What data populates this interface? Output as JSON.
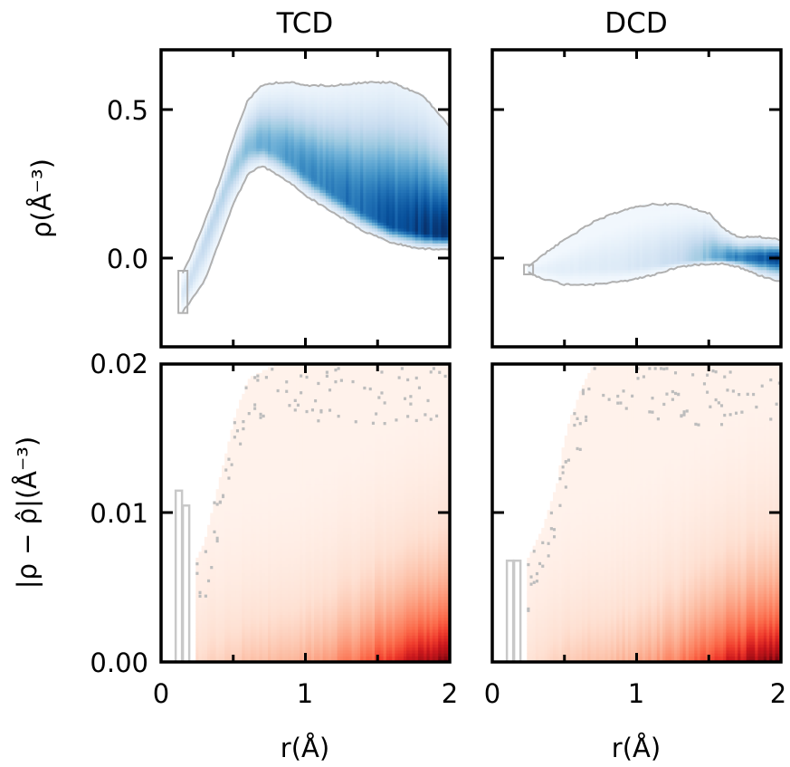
{
  "chart_data": [
    {
      "type": "heatmap",
      "panel": "top-left",
      "title": "TCD",
      "xlabel": "r(Å)",
      "ylabel": "ρ(Å⁻³)",
      "xlim": [
        0,
        2
      ],
      "ylim": [
        -0.3,
        0.7
      ],
      "xticks": [
        0,
        1,
        2
      ],
      "yticks": [
        0.0,
        0.5
      ],
      "ytick_labels": [
        "0.0",
        "0.5"
      ],
      "colormap": "Blues",
      "outline_color": "#b0b0b0",
      "band": {
        "r": [
          0.15,
          0.2,
          0.3,
          0.4,
          0.5,
          0.6,
          0.7,
          0.8,
          0.9,
          1.0,
          1.2,
          1.4,
          1.6,
          1.8,
          1.9,
          2.0
        ],
        "upper": [
          -0.05,
          0.0,
          0.12,
          0.25,
          0.4,
          0.53,
          0.58,
          0.59,
          0.59,
          0.58,
          0.58,
          0.59,
          0.59,
          0.55,
          0.5,
          0.44
        ],
        "peak": [
          -0.12,
          -0.08,
          0.05,
          0.18,
          0.3,
          0.37,
          0.38,
          0.36,
          0.33,
          0.29,
          0.22,
          0.16,
          0.11,
          0.09,
          0.08,
          0.08
        ],
        "lower": [
          -0.18,
          -0.15,
          -0.08,
          0.05,
          0.18,
          0.28,
          0.31,
          0.28,
          0.25,
          0.21,
          0.15,
          0.09,
          0.05,
          0.03,
          0.03,
          0.03
        ],
        "intensity": [
          0.15,
          0.2,
          0.25,
          0.3,
          0.35,
          0.45,
          0.5,
          0.55,
          0.6,
          0.65,
          0.72,
          0.8,
          0.88,
          0.95,
          0.98,
          1.0
        ]
      }
    },
    {
      "type": "heatmap",
      "panel": "top-right",
      "title": "DCD",
      "xlabel": "",
      "ylabel": "",
      "xlim": [
        0,
        2
      ],
      "ylim": [
        -0.3,
        0.7
      ],
      "xticks": [
        0,
        1,
        2
      ],
      "yticks": [
        0.0,
        0.5
      ],
      "colormap": "Blues",
      "outline_color": "#b0b0b0",
      "band": {
        "r": [
          0.25,
          0.35,
          0.5,
          0.7,
          0.9,
          1.1,
          1.3,
          1.5,
          1.6,
          1.7,
          1.85,
          2.0
        ],
        "upper": [
          -0.03,
          0.01,
          0.06,
          0.12,
          0.16,
          0.18,
          0.18,
          0.15,
          0.1,
          0.07,
          0.07,
          0.06
        ],
        "peak": [
          -0.04,
          -0.04,
          -0.04,
          -0.03,
          -0.03,
          -0.02,
          -0.01,
          0.0,
          0.0,
          0.0,
          0.0,
          0.0
        ],
        "lower": [
          -0.05,
          -0.07,
          -0.09,
          -0.09,
          -0.08,
          -0.06,
          -0.03,
          -0.02,
          -0.02,
          -0.03,
          -0.06,
          -0.08
        ],
        "intensity": [
          0.05,
          0.08,
          0.1,
          0.12,
          0.14,
          0.18,
          0.25,
          0.45,
          0.6,
          0.7,
          0.85,
          0.95
        ]
      }
    },
    {
      "type": "heatmap",
      "panel": "bottom-left",
      "title": "",
      "xlabel": "r(Å)",
      "ylabel": "|ρ − ρ̂|(Å⁻³)",
      "xlim": [
        0,
        2
      ],
      "ylim": [
        0,
        0.02
      ],
      "xticks": [
        0,
        1,
        2
      ],
      "xtick_labels": [
        "0",
        "1",
        "2"
      ],
      "yticks": [
        0.0,
        0.01,
        0.02
      ],
      "ytick_labels": [
        "0.00",
        "0.01",
        "0.02"
      ],
      "colormap": "Reds",
      "outline_color": "#b8b8b8",
      "error": {
        "r_start": 0.25,
        "edge": {
          "r": [
            0.25,
            0.3,
            0.4,
            0.5,
            0.6,
            0.8,
            1.0,
            1.5,
            2.0
          ],
          "y": [
            0.007,
            0.008,
            0.012,
            0.016,
            0.019,
            0.02,
            0.02,
            0.02,
            0.02
          ]
        },
        "max_intensity_by_r": {
          "r": [
            0.25,
            0.5,
            1.0,
            1.3,
            1.6,
            1.8,
            2.0
          ],
          "v": [
            0.15,
            0.22,
            0.3,
            0.45,
            0.7,
            0.85,
            1.0
          ]
        }
      }
    },
    {
      "type": "heatmap",
      "panel": "bottom-right",
      "title": "",
      "xlabel": "r(Å)",
      "ylabel": "",
      "xlim": [
        0,
        2
      ],
      "ylim": [
        0,
        0.02
      ],
      "xticks": [
        0,
        1,
        2
      ],
      "xtick_labels": [
        "0",
        "1",
        "2"
      ],
      "yticks": [
        0.0,
        0.01,
        0.02
      ],
      "colormap": "Reds",
      "outline_color": "#b8b8b8",
      "error": {
        "r_start": 0.25,
        "edge": {
          "r": [
            0.25,
            0.35,
            0.45,
            0.5,
            0.6,
            0.7,
            1.0,
            1.5,
            2.0
          ],
          "y": [
            0.007,
            0.009,
            0.012,
            0.015,
            0.018,
            0.02,
            0.02,
            0.02,
            0.02
          ]
        },
        "max_intensity_by_r": {
          "r": [
            0.25,
            0.5,
            1.0,
            1.3,
            1.6,
            1.8,
            2.0
          ],
          "v": [
            0.12,
            0.2,
            0.3,
            0.45,
            0.72,
            0.9,
            1.0
          ]
        }
      }
    }
  ],
  "labels": {
    "title_left": "TCD",
    "title_right": "DCD",
    "ylabel_top": "ρ(Å⁻³)",
    "ylabel_bottom": "|ρ − ρ̂|(Å⁻³)",
    "xlabel_left": "r(Å)",
    "xlabel_right": "r(Å)",
    "ytick_top_0": "0.0",
    "ytick_top_1": "0.5",
    "ytick_bottom_0": "0.00",
    "ytick_bottom_1": "0.01",
    "ytick_bottom_2": "0.02",
    "xtick_0": "0",
    "xtick_1": "1",
    "xtick_2": "2"
  }
}
